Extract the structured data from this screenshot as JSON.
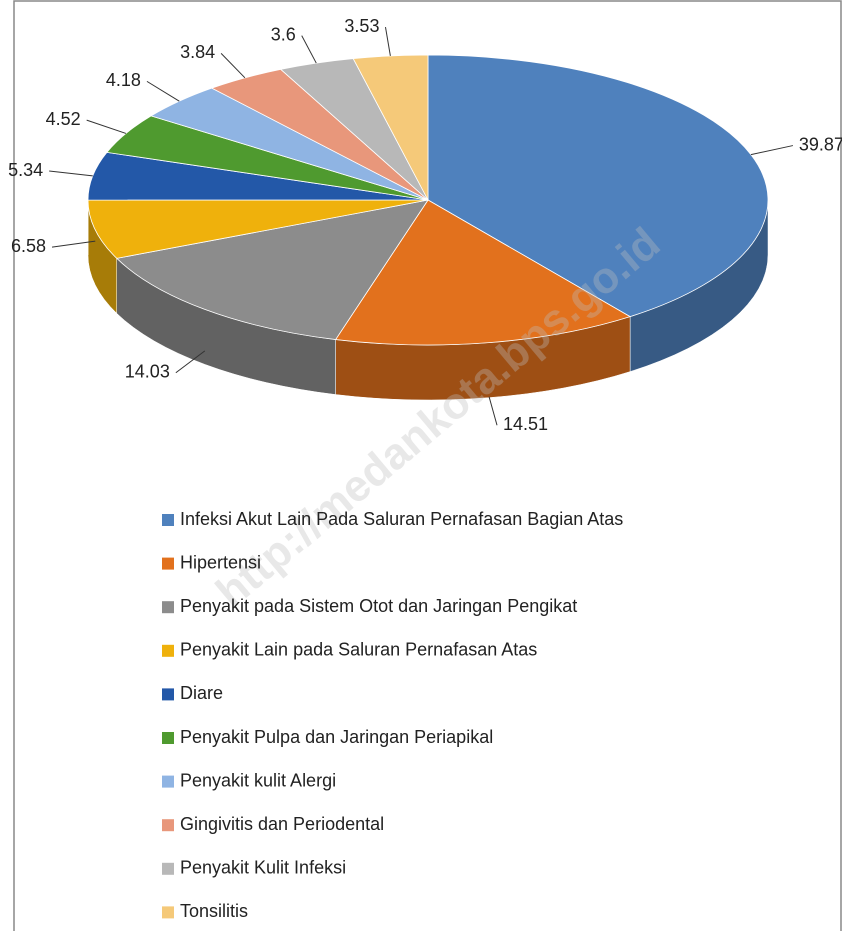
{
  "chart_data": {
    "type": "pie3d",
    "watermark": "http://medankota.bps.go.id",
    "categories": [
      "Infeksi Akut Lain Pada Saluran Pernafasan Bagian Atas",
      "Hipertensi",
      "Penyakit pada Sistem Otot dan Jaringan Pengikat",
      "Penyakit Lain pada Saluran Pernafasan Atas",
      "Diare",
      "Penyakit Pulpa dan Jaringan Periapikal",
      "Penyakit kulit Alergi",
      "Gingivitis dan Periodental",
      "Penyakit Kulit Infeksi",
      "Tonsilitis"
    ],
    "values": [
      39.87,
      14.51,
      14.03,
      6.58,
      5.34,
      4.52,
      4.18,
      3.84,
      3.6,
      3.53
    ],
    "colors": [
      "#4f81bd",
      "#e2711d",
      "#8c8c8c",
      "#efb10c",
      "#2358a8",
      "#4f9a2f",
      "#8fb4e3",
      "#e8977b",
      "#b8b8b8",
      "#f5c979"
    ],
    "legend": "bottom"
  }
}
